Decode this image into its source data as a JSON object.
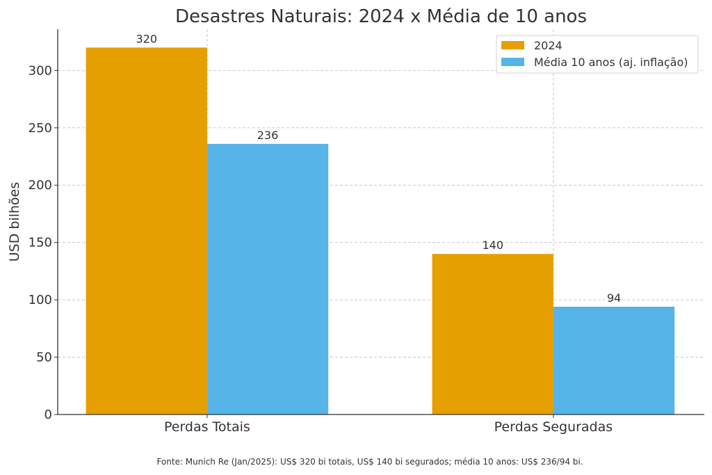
{
  "chart_data": {
    "type": "bar",
    "title": "Desastres Naturais: 2024 x Média de 10 anos",
    "xlabel": "",
    "ylabel": "USD bilhões",
    "categories": [
      "Perdas Totais",
      "Perdas Seguradas"
    ],
    "series": [
      {
        "name": "2024",
        "values": [
          320,
          140
        ],
        "color": "#E69F00"
      },
      {
        "name": "Média 10 anos (aj. inflação)",
        "values": [
          236,
          94
        ],
        "color": "#56B4E9"
      }
    ],
    "ylim": [
      0,
      336
    ],
    "yticks": [
      0,
      50,
      100,
      150,
      200,
      250,
      300
    ],
    "grid": true,
    "grid_style": "dashed",
    "legend_position": "top-right",
    "data_labels": true,
    "footnote": "Fonte: Munich Re (Jan/2025): US$ 320 bi totais, US$ 140 bi segurados; média 10 anos: US$ 236/94 bi."
  }
}
